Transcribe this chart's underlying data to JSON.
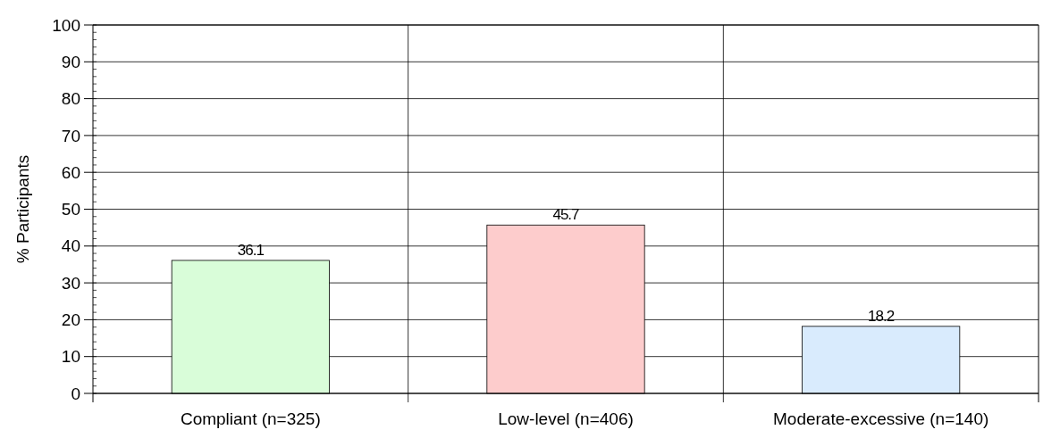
{
  "chart_data": {
    "type": "bar",
    "ylabel": "% Participants",
    "categories": [
      "Compliant (n=325)",
      "Low-level (n=406)",
      "Moderate-excessive (n=140)"
    ],
    "values": [
      36.1,
      45.7,
      18.2
    ],
    "colors": [
      "#d9fdd9",
      "#fdcccc",
      "#d9ebfd"
    ],
    "ylim": [
      0,
      100
    ],
    "yticks": [
      0,
      10,
      20,
      30,
      40,
      50,
      60,
      70,
      80,
      90,
      100
    ],
    "grid": "y",
    "data_labels": true
  }
}
